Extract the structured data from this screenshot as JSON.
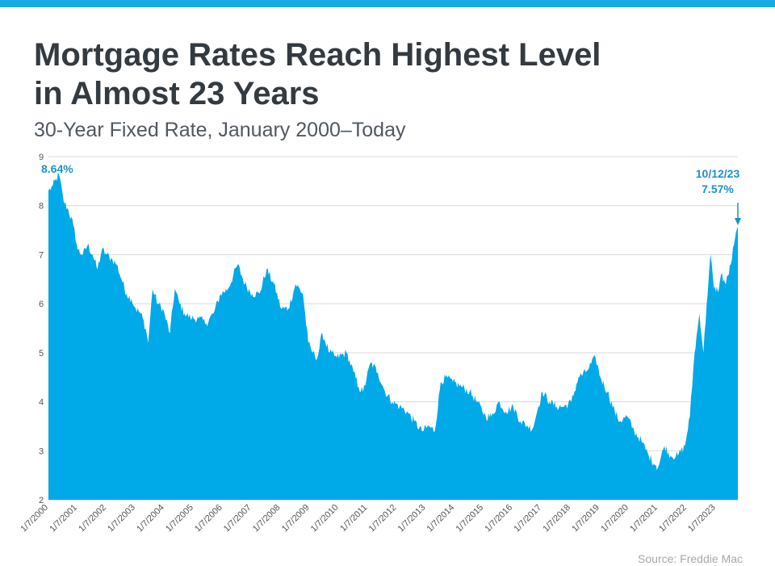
{
  "header": {
    "title_line1": "Mortgage Rates Reach Highest Level",
    "title_line2": "in Almost 23 Years",
    "subtitle": "30-Year Fixed Rate, January 2000–Today"
  },
  "footer": {
    "source": "Source: Freddie Mac"
  },
  "colors": {
    "area": "#00a9e7",
    "annotation": "#1c93c9",
    "grid": "#d9d9d9",
    "axis_text": "#555555",
    "title": "#333a40"
  },
  "chart_data": {
    "type": "area",
    "x_axis": "date",
    "ylim": [
      2,
      9
    ],
    "yticks": [
      "2",
      "3",
      "4",
      "5",
      "6",
      "7",
      "8",
      "9"
    ],
    "grid": "horizontal",
    "xticks": [
      "1/7/2000",
      "1/7/2001",
      "1/7/2002",
      "1/7/2003",
      "1/7/2004",
      "1/7/2005",
      "1/7/2006",
      "1/7/2007",
      "1/7/2008",
      "1/7/2009",
      "1/7/2010",
      "1/7/2011",
      "1/7/2012",
      "1/7/2013",
      "1/7/2014",
      "1/7/2015",
      "1/7/2016",
      "1/7/2017",
      "1/7/2018",
      "1/7/2019",
      "1/7/2020",
      "1/7/2021",
      "1/7/2022",
      "1/7/2023"
    ],
    "x": [
      "2000-01-07",
      "2000-03-01",
      "2000-05-19",
      "2000-07-15",
      "2000-09-15",
      "2000-11-15",
      "2001-01-10",
      "2001-03-15",
      "2001-05-15",
      "2001-07-15",
      "2001-09-15",
      "2001-11-10",
      "2002-01-10",
      "2002-03-22",
      "2002-05-15",
      "2002-07-15",
      "2002-09-15",
      "2002-11-15",
      "2003-01-10",
      "2003-03-15",
      "2003-05-15",
      "2003-06-15",
      "2003-08-10",
      "2003-10-15",
      "2003-12-15",
      "2004-03-15",
      "2004-05-15",
      "2004-07-15",
      "2004-09-15",
      "2004-12-15",
      "2005-03-15",
      "2005-06-15",
      "2005-09-15",
      "2005-12-15",
      "2006-03-15",
      "2006-07-15",
      "2006-10-15",
      "2007-01-15",
      "2007-04-15",
      "2007-07-15",
      "2007-10-15",
      "2008-01-15",
      "2008-04-15",
      "2008-07-15",
      "2008-10-15",
      "2008-12-20",
      "2009-02-15",
      "2009-04-15",
      "2009-06-15",
      "2009-09-15",
      "2009-12-15",
      "2010-04-15",
      "2010-07-15",
      "2010-09-15",
      "2010-11-10",
      "2011-02-15",
      "2011-05-15",
      "2011-08-15",
      "2011-11-15",
      "2012-02-15",
      "2012-05-15",
      "2012-08-15",
      "2012-11-20",
      "2013-02-15",
      "2013-05-02",
      "2013-07-15",
      "2013-09-15",
      "2013-12-15",
      "2014-04-15",
      "2014-07-15",
      "2014-10-15",
      "2015-02-01",
      "2015-04-15",
      "2015-07-15",
      "2015-10-15",
      "2016-01-15",
      "2016-04-15",
      "2016-07-15",
      "2016-09-15",
      "2016-11-25",
      "2017-01-15",
      "2017-04-15",
      "2017-07-15",
      "2017-10-15",
      "2018-01-15",
      "2018-04-15",
      "2018-07-15",
      "2018-11-15",
      "2019-01-15",
      "2019-04-15",
      "2019-07-15",
      "2019-09-15",
      "2019-12-15",
      "2020-03-15",
      "2020-06-15",
      "2020-09-15",
      "2020-12-15",
      "2021-01-07",
      "2021-04-01",
      "2021-06-15",
      "2021-09-15",
      "2021-12-15",
      "2022-02-15",
      "2022-04-15",
      "2022-06-16",
      "2022-08-04",
      "2022-09-15",
      "2022-11-03",
      "2022-12-15",
      "2023-02-15",
      "2023-03-15",
      "2023-05-15",
      "2023-07-15",
      "2023-08-24",
      "2023-10-12"
    ],
    "y": [
      8.3,
      8.4,
      8.64,
      8.1,
      7.9,
      7.6,
      7.1,
      7.0,
      7.2,
      7.0,
      6.7,
      7.1,
      7.0,
      6.9,
      6.8,
      6.5,
      6.2,
      6.1,
      5.9,
      5.8,
      5.5,
      5.2,
      6.3,
      6.0,
      5.9,
      5.4,
      6.3,
      6.0,
      5.8,
      5.7,
      5.7,
      5.6,
      5.8,
      6.2,
      6.3,
      6.8,
      6.4,
      6.2,
      6.2,
      6.7,
      6.4,
      5.9,
      5.9,
      6.4,
      6.2,
      5.2,
      5.0,
      4.9,
      5.4,
      5.0,
      4.9,
      5.0,
      4.6,
      4.3,
      4.2,
      4.8,
      4.6,
      4.2,
      4.0,
      3.9,
      3.8,
      3.6,
      3.4,
      3.5,
      3.4,
      4.4,
      4.5,
      4.4,
      4.3,
      4.2,
      4.0,
      3.7,
      3.7,
      4.0,
      3.8,
      3.9,
      3.6,
      3.5,
      3.45,
      3.9,
      4.2,
      4.0,
      3.9,
      3.9,
      4.0,
      4.5,
      4.6,
      4.9,
      4.5,
      4.2,
      3.8,
      3.6,
      3.7,
      3.4,
      3.2,
      2.9,
      2.7,
      2.65,
      3.1,
      2.9,
      2.9,
      3.1,
      3.7,
      5.0,
      5.8,
      5.0,
      6.0,
      7.0,
      6.3,
      6.3,
      6.6,
      6.4,
      6.8,
      7.2,
      7.57
    ],
    "annotations": [
      {
        "label": "8.64%",
        "x": "2000-05-19",
        "y": 8.64
      },
      {
        "label": "10/12/23",
        "label2": "7.57%",
        "x": "2023-10-12",
        "y": 7.57
      }
    ]
  }
}
